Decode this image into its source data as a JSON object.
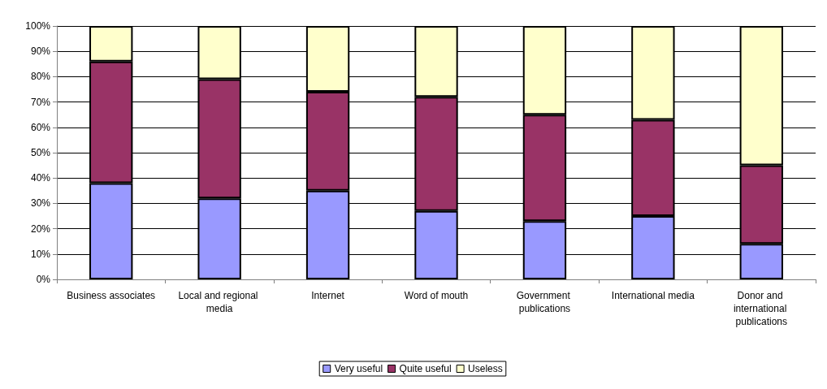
{
  "chart_data": {
    "type": "bar",
    "stacked": true,
    "categories": [
      "Business associates",
      "Local and regional media",
      "Internet",
      "Word of mouth",
      "Government publications",
      "International media",
      "Donor and international publications"
    ],
    "series": [
      {
        "name": "Very useful",
        "color": "#9999ff",
        "values": [
          38,
          32,
          35,
          27,
          23,
          25,
          14
        ]
      },
      {
        "name": "Quite useful",
        "color": "#993366",
        "values": [
          48,
          47,
          39,
          45,
          42,
          38,
          31
        ]
      },
      {
        "name": "Useless",
        "color": "#ffffcc",
        "values": [
          14,
          21,
          26,
          28,
          35,
          37,
          55
        ]
      }
    ],
    "ylim": [
      0,
      100
    ],
    "yticks": [
      {
        "value": 0,
        "label": "0%"
      },
      {
        "value": 10,
        "label": "10%"
      },
      {
        "value": 20,
        "label": "20%"
      },
      {
        "value": 30,
        "label": "30%"
      },
      {
        "value": 40,
        "label": "40%"
      },
      {
        "value": 50,
        "label": "50%"
      },
      {
        "value": 60,
        "label": "60%"
      },
      {
        "value": 70,
        "label": "70%"
      },
      {
        "value": 80,
        "label": "80%"
      },
      {
        "value": 90,
        "label": "90%"
      },
      {
        "value": 100,
        "label": "100%"
      }
    ],
    "grid": "y",
    "legend": "bottom"
  }
}
